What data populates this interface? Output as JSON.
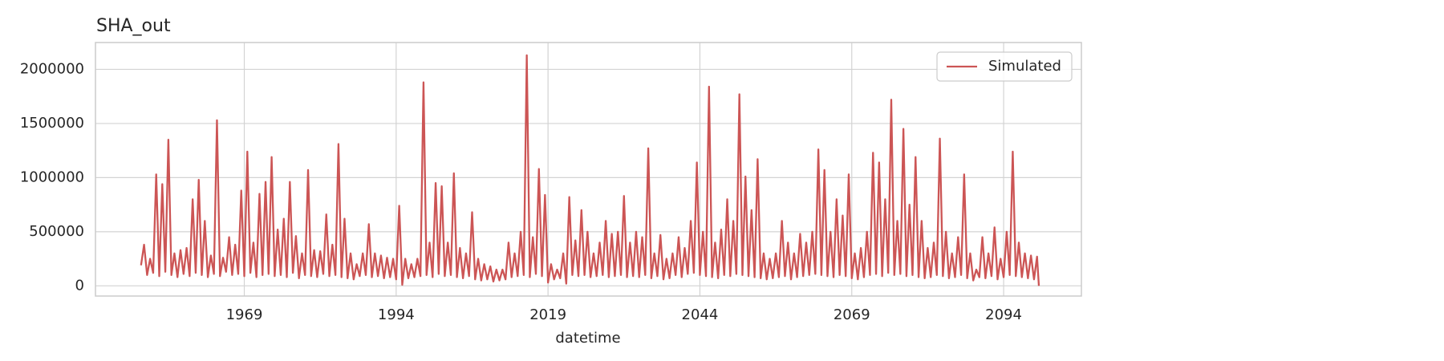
{
  "chart_data": {
    "type": "line",
    "title": "SHA_out",
    "xlabel": "datetime",
    "x": [
      1952,
      1952.5,
      1953,
      1953.5,
      1954,
      1954.5,
      1955,
      1955.5,
      1956,
      1956.5,
      1957,
      1957.5,
      1958,
      1958.5,
      1959,
      1959.5,
      1960,
      1960.5,
      1961,
      1961.5,
      1962,
      1962.5,
      1963,
      1963.5,
      1964,
      1964.5,
      1965,
      1965.5,
      1966,
      1966.5,
      1967,
      1967.5,
      1968,
      1968.5,
      1969,
      1969.5,
      1970,
      1970.5,
      1971,
      1971.5,
      1972,
      1972.5,
      1973,
      1973.5,
      1974,
      1974.5,
      1975,
      1975.5,
      1976,
      1976.5,
      1977,
      1977.5,
      1978,
      1978.5,
      1979,
      1979.5,
      1980,
      1980.5,
      1981,
      1981.5,
      1982,
      1982.5,
      1983,
      1983.5,
      1984,
      1984.5,
      1985,
      1985.5,
      1986,
      1986.5,
      1987,
      1987.5,
      1988,
      1988.5,
      1989,
      1989.5,
      1990,
      1990.5,
      1991,
      1991.5,
      1992,
      1992.5,
      1993,
      1993.5,
      1994,
      1994.5,
      1995,
      1995.5,
      1996,
      1996.5,
      1997,
      1997.5,
      1998,
      1998.5,
      1999,
      1999.5,
      2000,
      2000.5,
      2001,
      2001.5,
      2002,
      2002.5,
      2003,
      2003.5,
      2004,
      2004.5,
      2005,
      2005.5,
      2006,
      2006.5,
      2007,
      2007.5,
      2008,
      2008.5,
      2009,
      2009.5,
      2010,
      2010.5,
      2011,
      2011.5,
      2012,
      2012.5,
      2013,
      2013.5,
      2014,
      2014.5,
      2015,
      2015.5,
      2016,
      2016.5,
      2017,
      2017.5,
      2018,
      2018.5,
      2019,
      2019.5,
      2020,
      2020.5,
      2021,
      2021.5,
      2022,
      2022.5,
      2023,
      2023.5,
      2024,
      2024.5,
      2025,
      2025.5,
      2026,
      2026.5,
      2027,
      2027.5,
      2028,
      2028.5,
      2029,
      2029.5,
      2030,
      2030.5,
      2031,
      2031.5,
      2032,
      2032.5,
      2033,
      2033.5,
      2034,
      2034.5,
      2035,
      2035.5,
      2036,
      2036.5,
      2037,
      2037.5,
      2038,
      2038.5,
      2039,
      2039.5,
      2040,
      2040.5,
      2041,
      2041.5,
      2042,
      2042.5,
      2043,
      2043.5,
      2044,
      2044.5,
      2045,
      2045.5,
      2046,
      2046.5,
      2047,
      2047.5,
      2048,
      2048.5,
      2049,
      2049.5,
      2050,
      2050.5,
      2051,
      2051.5,
      2052,
      2052.5,
      2053,
      2053.5,
      2054,
      2054.5,
      2055,
      2055.5,
      2056,
      2056.5,
      2057,
      2057.5,
      2058,
      2058.5,
      2059,
      2059.5,
      2060,
      2060.5,
      2061,
      2061.5,
      2062,
      2062.5,
      2063,
      2063.5,
      2064,
      2064.5,
      2065,
      2065.5,
      2066,
      2066.5,
      2067,
      2067.5,
      2068,
      2068.5,
      2069,
      2069.5,
      2070,
      2070.5,
      2071,
      2071.5,
      2072,
      2072.5,
      2073,
      2073.5,
      2074,
      2074.5,
      2075,
      2075.5,
      2076,
      2076.5,
      2077,
      2077.5,
      2078,
      2078.5,
      2079,
      2079.5,
      2080,
      2080.5,
      2081,
      2081.5,
      2082,
      2082.5,
      2083,
      2083.5,
      2084,
      2084.5,
      2085,
      2085.5,
      2086,
      2086.5,
      2087,
      2087.5,
      2088,
      2088.5,
      2089,
      2089.5,
      2090,
      2090.5,
      2091,
      2091.5,
      2092,
      2092.5,
      2093,
      2093.5,
      2094,
      2094.5,
      2095,
      2095.5,
      2096,
      2096.5,
      2097,
      2097.5,
      2098,
      2098.5,
      2099,
      2099.5,
      2099.8
    ],
    "series": [
      {
        "name": "Simulated",
        "color": "#cc5555",
        "values": [
          190000,
          380000,
          100000,
          250000,
          120000,
          1030000,
          90000,
          940000,
          130000,
          1350000,
          100000,
          300000,
          80000,
          330000,
          110000,
          350000,
          90000,
          800000,
          120000,
          980000,
          100000,
          600000,
          80000,
          280000,
          110000,
          1530000,
          90000,
          260000,
          130000,
          450000,
          100000,
          380000,
          110000,
          880000,
          90000,
          1240000,
          120000,
          400000,
          80000,
          850000,
          100000,
          960000,
          110000,
          1190000,
          90000,
          520000,
          100000,
          620000,
          80000,
          960000,
          120000,
          460000,
          70000,
          300000,
          100000,
          1070000,
          90000,
          330000,
          80000,
          320000,
          110000,
          660000,
          90000,
          380000,
          100000,
          1310000,
          80000,
          620000,
          70000,
          300000,
          60000,
          200000,
          90000,
          300000,
          100000,
          570000,
          80000,
          300000,
          90000,
          280000,
          70000,
          260000,
          80000,
          250000,
          60000,
          740000,
          10000,
          250000,
          70000,
          200000,
          80000,
          250000,
          90000,
          1880000,
          100000,
          400000,
          80000,
          950000,
          110000,
          920000,
          90000,
          400000,
          100000,
          1040000,
          80000,
          350000,
          70000,
          300000,
          90000,
          680000,
          60000,
          250000,
          50000,
          200000,
          60000,
          180000,
          40000,
          150000,
          50000,
          150000,
          60000,
          400000,
          80000,
          300000,
          90000,
          500000,
          100000,
          2130000,
          80000,
          450000,
          110000,
          1080000,
          90000,
          840000,
          30000,
          200000,
          60000,
          150000,
          70000,
          300000,
          20000,
          820000,
          100000,
          420000,
          90000,
          700000,
          100000,
          500000,
          80000,
          300000,
          90000,
          400000,
          100000,
          600000,
          80000,
          480000,
          90000,
          500000,
          100000,
          830000,
          80000,
          400000,
          90000,
          500000,
          80000,
          450000,
          100000,
          1270000,
          70000,
          300000,
          90000,
          470000,
          60000,
          250000,
          70000,
          300000,
          100000,
          450000,
          80000,
          350000,
          110000,
          600000,
          120000,
          1140000,
          100000,
          500000,
          90000,
          1840000,
          80000,
          400000,
          70000,
          520000,
          100000,
          800000,
          90000,
          600000,
          110000,
          1770000,
          100000,
          1010000,
          90000,
          700000,
          80000,
          1170000,
          70000,
          300000,
          60000,
          250000,
          70000,
          300000,
          80000,
          600000,
          90000,
          400000,
          60000,
          300000,
          80000,
          480000,
          90000,
          400000,
          100000,
          500000,
          110000,
          1260000,
          100000,
          1070000,
          90000,
          500000,
          80000,
          800000,
          100000,
          650000,
          90000,
          1030000,
          70000,
          300000,
          60000,
          350000,
          80000,
          500000,
          100000,
          1230000,
          110000,
          1140000,
          90000,
          800000,
          120000,
          1720000,
          100000,
          600000,
          110000,
          1450000,
          90000,
          750000,
          100000,
          1190000,
          80000,
          600000,
          70000,
          350000,
          80000,
          400000,
          100000,
          1360000,
          90000,
          500000,
          70000,
          300000,
          80000,
          450000,
          100000,
          1030000,
          70000,
          300000,
          50000,
          150000,
          80000,
          450000,
          70000,
          300000,
          90000,
          540000,
          60000,
          250000,
          80000,
          500000,
          100000,
          1240000,
          90000,
          400000,
          80000,
          300000,
          70000,
          280000,
          60000,
          270000,
          0
        ]
      }
    ],
    "xlim": [
      1944.5,
      2106.8
    ],
    "xticks": [
      1969,
      1994,
      2019,
      2044,
      2069,
      2094
    ],
    "ylim": [
      -94000,
      2248000
    ],
    "yticks": [
      0,
      500000,
      1000000,
      1500000,
      2000000
    ],
    "grid": true,
    "legend": "upper right"
  }
}
